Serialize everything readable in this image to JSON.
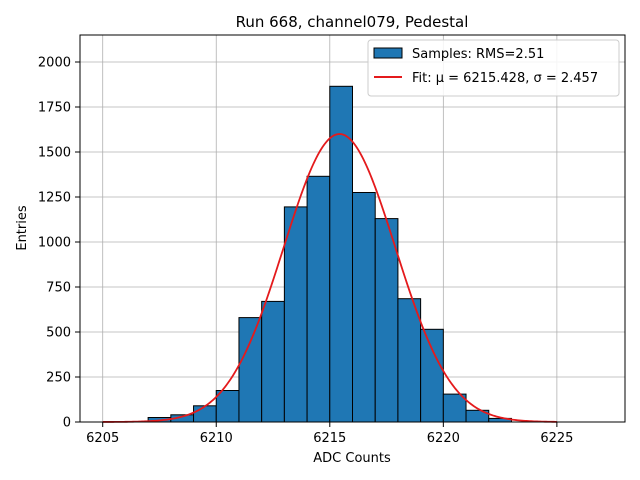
{
  "chart_data": {
    "type": "bar",
    "title": "Run 668, channel079, Pedestal",
    "xlabel": "ADC Counts",
    "ylabel": "Entries",
    "xlim": [
      6204,
      6228
    ],
    "ylim": [
      0,
      2150
    ],
    "xticks": [
      6205,
      6210,
      6215,
      6220,
      6225
    ],
    "yticks": [
      0,
      250,
      500,
      750,
      1000,
      1250,
      1500,
      1750,
      2000
    ],
    "grid": true,
    "legend_position": "top-right",
    "bar_color": "#1f77b4",
    "fit_color": "#e41a1c",
    "histogram": {
      "name": "Samples: RMS=2.51",
      "bin_edges": [
        6207,
        6208,
        6209,
        6210,
        6211,
        6212,
        6213,
        6214,
        6215,
        6216,
        6217,
        6218,
        6219,
        6220,
        6221,
        6222,
        6223
      ],
      "counts": [
        25,
        40,
        90,
        175,
        580,
        670,
        1195,
        1365,
        1865,
        1275,
        1130,
        685,
        515,
        155,
        65,
        20
      ]
    },
    "fit": {
      "name": "Fit: μ = 6215.428, σ = 2.457",
      "mu": 6215.428,
      "sigma": 2.457,
      "amplitude": 1600,
      "x_range": [
        6205,
        6225
      ]
    }
  }
}
